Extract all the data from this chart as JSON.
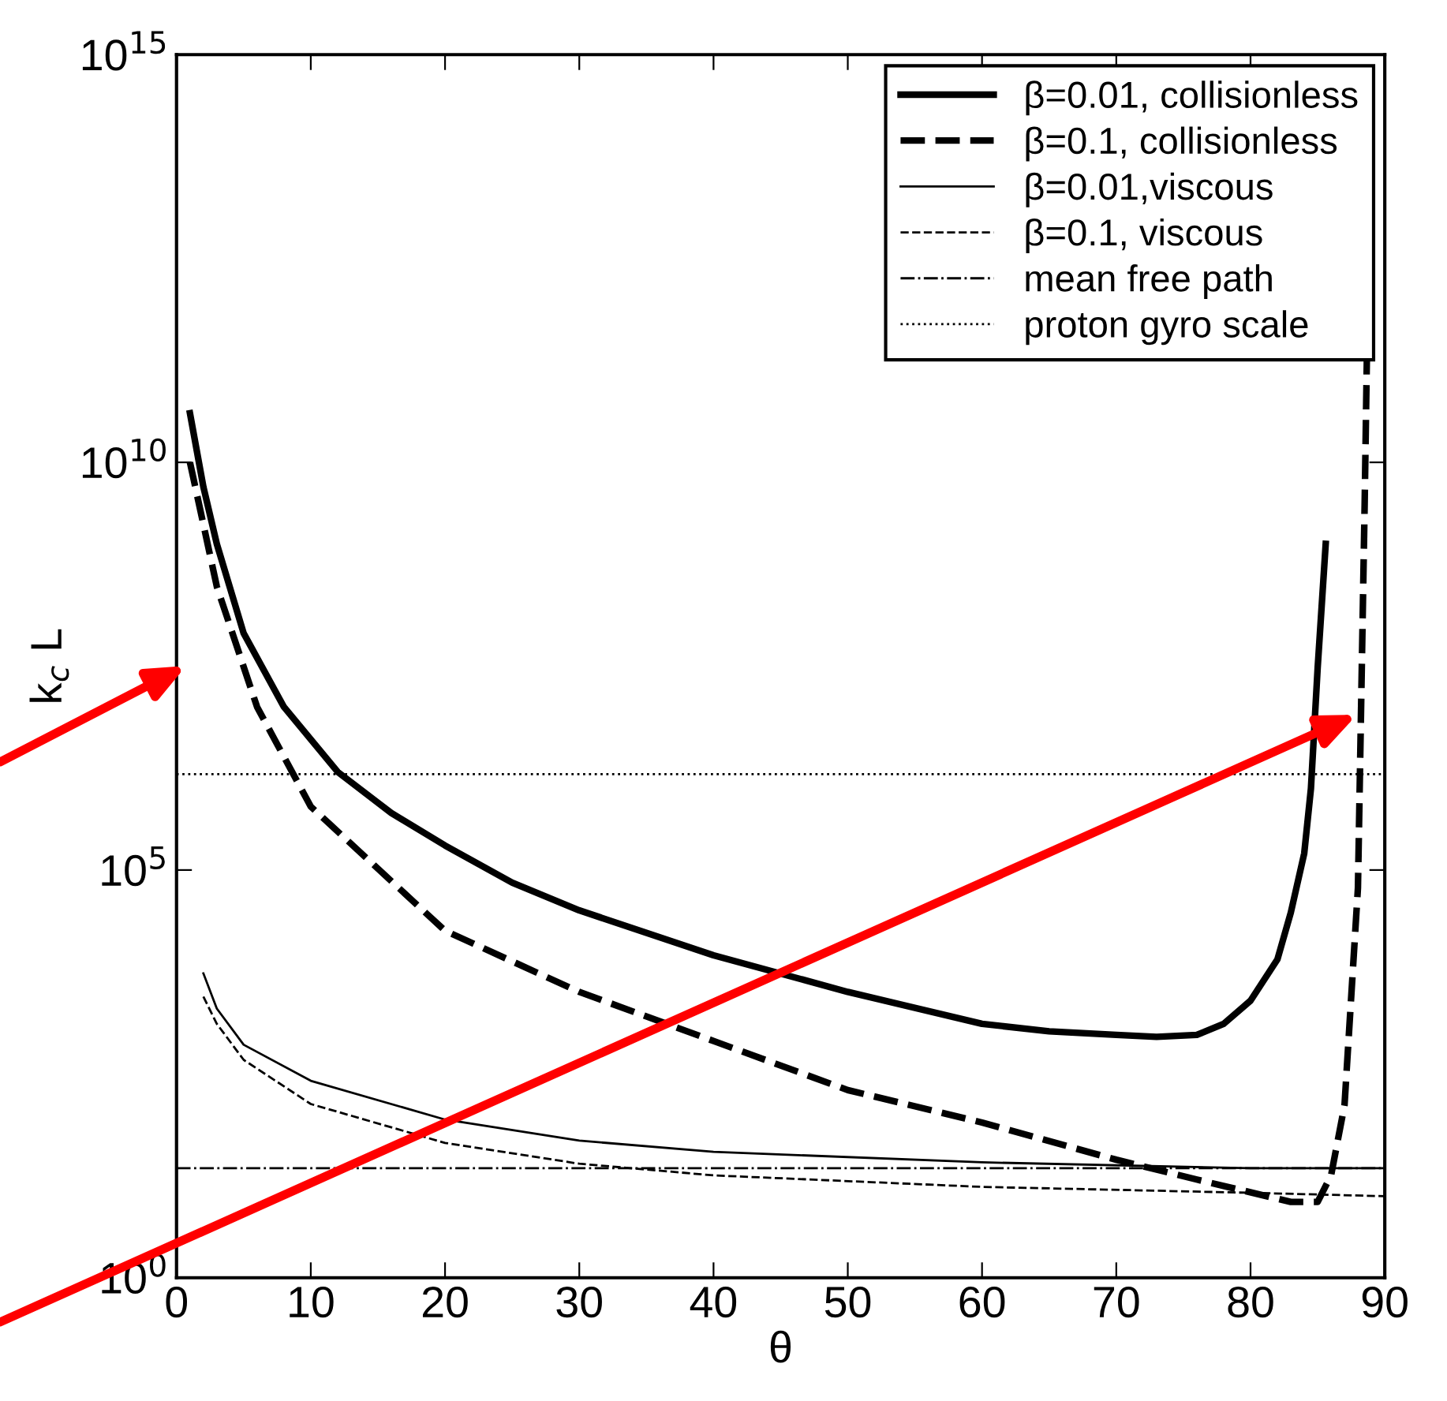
{
  "chart_data": {
    "type": "line",
    "xlabel": "θ",
    "ylabel": "k$_{c}$ L",
    "log": "y",
    "xlim": [
      0,
      90
    ],
    "xticks": [
      0,
      10,
      20,
      30,
      40,
      50,
      60,
      70,
      80,
      90
    ],
    "ylim": [
      1,
      1000000000000000.0
    ],
    "yticks": [
      {
        "value": 1,
        "label": "10$^{0}$"
      },
      {
        "value": 100000.0,
        "label": "10$^{5}$"
      },
      {
        "value": 10000000000.0,
        "label": "10$^{10}$"
      },
      {
        "value": 1000000000000000.0,
        "label": "10$^{15}$"
      }
    ],
    "grid": false,
    "legend": "top right",
    "series": [
      {
        "name": "β=0.01, collisionless",
        "color": "#000000",
        "line_style": "solid",
        "x": [
          1,
          2,
          3,
          5,
          8,
          12,
          16,
          20,
          25,
          30,
          40,
          50,
          60,
          65,
          70,
          73,
          76,
          78,
          80,
          82,
          83,
          84,
          84.5,
          85,
          85.6
        ],
        "values": [
          40000000000.0,
          5000000000.0,
          1000000000.0,
          80000000.0,
          10000000.0,
          1600000.0,
          500000.0,
          200000.0,
          70000.0,
          32000.0,
          9000.0,
          3200.0,
          1300.0,
          1050.0,
          950,
          900,
          950,
          1300.0,
          2500.0,
          8000.0,
          30000.0,
          160000.0,
          1000000.0,
          30000000.0,
          1000000000.0
        ]
      },
      {
        "name": "β=0.1, collisionless",
        "color": "#000000",
        "line_style": "dashed",
        "x": [
          1,
          3,
          6,
          10,
          20,
          30,
          40,
          50,
          60,
          70,
          76,
          83,
          85,
          86,
          87,
          88,
          88.5,
          89
        ],
        "values": [
          10000000000.0,
          300000000.0,
          10000000.0,
          600000.0,
          18000.0,
          3200.0,
          800,
          200,
          80,
          28,
          16,
          8.5,
          8.5,
          18,
          130,
          60000.0,
          3000000000.0,
          800000000000000.0
        ]
      },
      {
        "name": "β=0.01,viscous",
        "color": "#000000",
        "line_style": "solid",
        "x": [
          2,
          3,
          5,
          10,
          20,
          30,
          40,
          60,
          80,
          90
        ],
        "values": [
          5400.0,
          2000.0,
          720,
          260,
          87,
          48,
          35,
          26,
          22,
          22
        ]
      },
      {
        "name": "β=0.1, viscous",
        "color": "#000000",
        "line_style": "dashed",
        "x": [
          2,
          3,
          5,
          10,
          20,
          30,
          40,
          60,
          80,
          90
        ],
        "values": [
          2800.0,
          1300.0,
          470,
          135,
          45,
          25,
          18,
          13,
          11,
          10
        ]
      }
    ],
    "ref_lines": [
      {
        "axis": "y",
        "value": 22,
        "label": "mean free path",
        "color": "#000000",
        "line_style": "dashdot"
      },
      {
        "axis": "y",
        "value": 1500000.0,
        "label": "proton gyro scale",
        "color": "#000000",
        "line_style": "dotted"
      }
    ]
  }
}
